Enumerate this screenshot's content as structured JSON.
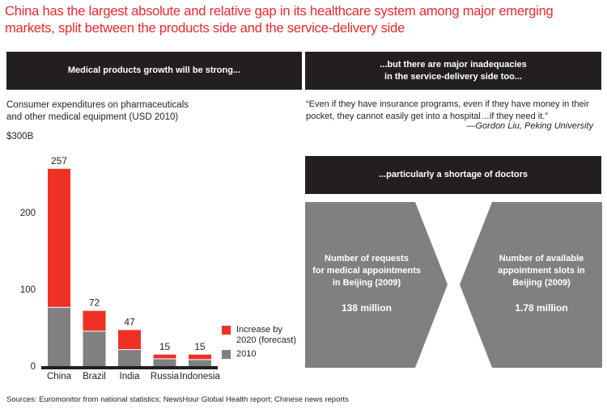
{
  "title": "China has the largest absolute and relative gap in its healthcare system among major emerging markets, split between the products side and the service-delivery side",
  "left_panel": {
    "header": "Medical products growth will be strong...",
    "subtitle_line1": "Consumer expenditures on pharmaceuticals",
    "subtitle_line2": "and other medical equipment (USD 2010)",
    "y_unit_label": "$300B"
  },
  "right_panel": {
    "header_line1": "...but there are major inadequacies",
    "header_line2": "in the service-delivery side too...",
    "quote": "“Even if they have insurance programs, even if they have money in their pocket, they cannot easily get into a hospital…if they need it.”",
    "attribution": "—Gordon Liu, Peking University",
    "doctors_header": "...particularly a shortage of doctors",
    "left_shape": {
      "line1": "Number of requests",
      "line2": "for medical appointments",
      "line3": "in Beijing (2009)",
      "value": "138 million"
    },
    "right_shape": {
      "line1": "Number of available",
      "line2": "appointment slots in",
      "line3": "Beijing (2009)",
      "value": "1.78 million"
    }
  },
  "sources": "Sources: Euromonitor from national statistics; NewsHour Global Health report; Chinese news reports",
  "colors": {
    "accent_red": "#ee3124",
    "grey": "#808083",
    "dark": "#231f20"
  },
  "chart_data": {
    "type": "bar",
    "stacked": true,
    "title": "Consumer expenditures on pharmaceuticals and other medical equipment (USD 2010)",
    "xlabel": "",
    "ylabel": "$300B",
    "ylim": [
      0,
      300
    ],
    "yticks": [
      0,
      100,
      200
    ],
    "ytick_labels": [
      "0",
      "100",
      "200"
    ],
    "grid": false,
    "legend_position": "right",
    "categories": [
      "China",
      "Brazil",
      "India",
      "Russia",
      "Indonesia"
    ],
    "series": [
      {
        "name": "2010",
        "color": "#808083",
        "values": [
          76,
          45,
          21,
          9,
          8
        ]
      },
      {
        "name": "Increase by 2020 (forecast)",
        "color": "#ee3124",
        "values": [
          181,
          27,
          26,
          6,
          7
        ]
      }
    ],
    "totals": [
      257,
      72,
      47,
      15,
      15
    ],
    "total_labels": [
      "257",
      "72",
      "47",
      "15",
      "15"
    ],
    "legend": [
      {
        "label_line1": "Increase by",
        "label_line2": "2020 (forecast)",
        "color": "#ee3124"
      },
      {
        "label_line1": "2010",
        "label_line2": "",
        "color": "#808083"
      }
    ]
  }
}
